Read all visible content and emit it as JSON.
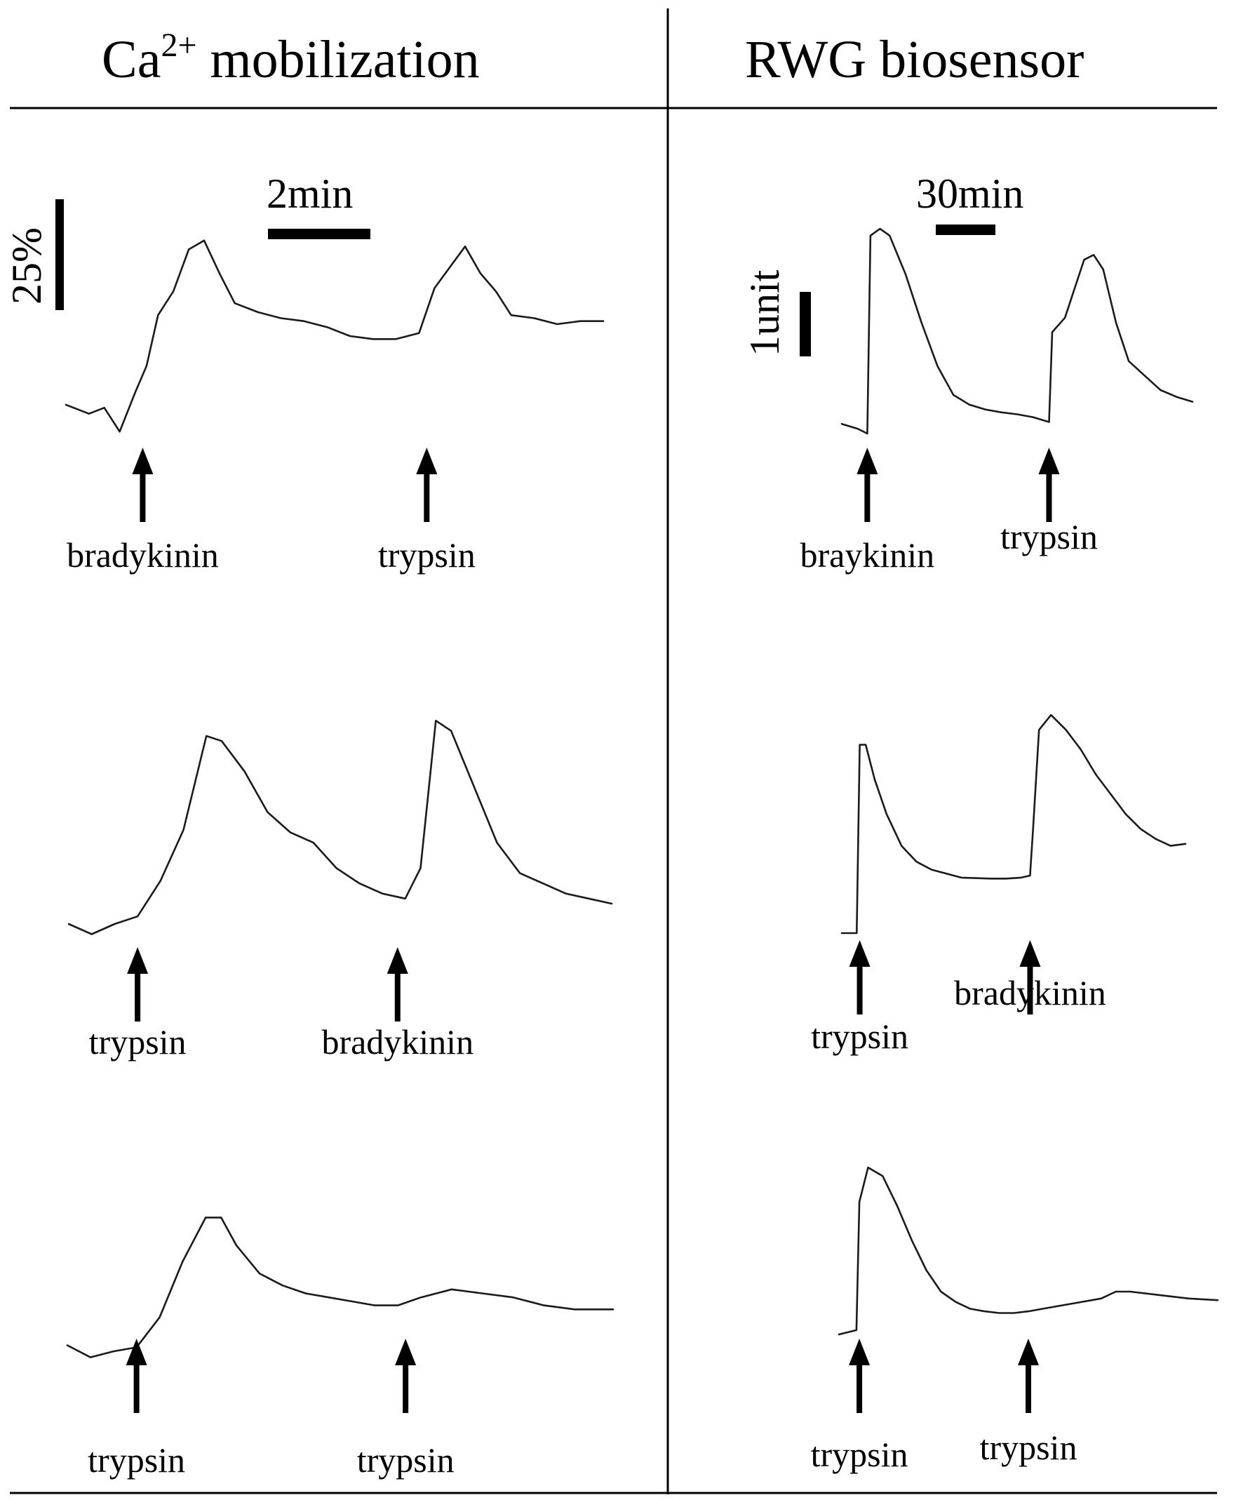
{
  "headers": {
    "left": {
      "base": "Ca",
      "sup": "2+",
      "rest": " mobilization"
    },
    "right": "RWG biosensor"
  },
  "scale_bars": {
    "ca_time": "2min",
    "ca_amplitude": "25%",
    "rwg_time": "30min",
    "rwg_amplitude": "1unit"
  },
  "colors": {
    "trace": "#1a1a1a",
    "ink": "#000000",
    "background": "#ffffff"
  },
  "chart_data": [
    {
      "type": "line",
      "panel": "Ca2+ mobilization, row 1",
      "x": [
        0,
        0.3,
        0.5,
        0.7,
        0.9,
        1.05,
        1.2,
        1.4,
        1.6,
        1.8,
        2.0,
        2.2,
        2.5,
        2.8,
        3.1,
        3.4,
        3.7,
        4.0,
        4.3,
        4.6,
        4.8,
        5.0,
        5.2,
        5.4,
        5.6,
        5.8,
        6.1,
        6.4,
        6.7,
        7.0
      ],
      "y": [
        32,
        29,
        31,
        23,
        36,
        45,
        62,
        70,
        84,
        87,
        76,
        66,
        63,
        61,
        60,
        58,
        55,
        54,
        54,
        56,
        71,
        78,
        85,
        76,
        70,
        62,
        61,
        59,
        60,
        60
      ],
      "events": [
        {
          "x": 1.0,
          "label": "bradykinin"
        },
        {
          "x": 4.7,
          "label": "trypsin"
        }
      ]
    },
    {
      "type": "line",
      "panel": "Ca2+ mobilization, row 2",
      "x": [
        0,
        0.3,
        0.6,
        0.9,
        1.2,
        1.5,
        1.8,
        2.0,
        2.3,
        2.6,
        2.9,
        3.2,
        3.5,
        3.8,
        4.1,
        4.4,
        4.6,
        4.8,
        5.0,
        5.3,
        5.6,
        5.9,
        6.2,
        6.5,
        6.8,
        7.1
      ],
      "y": [
        8,
        4,
        8,
        11,
        25,
        45,
        82,
        80,
        68,
        52,
        44,
        40,
        30,
        24,
        20,
        18,
        30,
        88,
        84,
        62,
        40,
        28,
        24,
        20,
        18,
        16
      ],
      "events": [
        {
          "x": 0.9,
          "label": "trypsin"
        },
        {
          "x": 4.3,
          "label": "bradykinin"
        }
      ]
    },
    {
      "type": "line",
      "panel": "Ca2+ mobilization, row 3",
      "x": [
        0,
        0.3,
        0.6,
        0.9,
        1.2,
        1.5,
        1.8,
        2.0,
        2.2,
        2.5,
        2.8,
        3.1,
        3.4,
        3.7,
        4.0,
        4.3,
        4.6,
        5.0,
        5.4,
        5.8,
        6.2,
        6.6,
        7.1
      ],
      "y": [
        10,
        4,
        7,
        9,
        24,
        52,
        74,
        74,
        60,
        46,
        40,
        36,
        34,
        32,
        30,
        30,
        34,
        38,
        36,
        34,
        30,
        28,
        28
      ],
      "events": [
        {
          "x": 0.9,
          "label": "trypsin"
        },
        {
          "x": 4.4,
          "label": "trypsin"
        }
      ]
    },
    {
      "type": "line",
      "panel": "RWG biosensor, row 1",
      "x": [
        0,
        5,
        8,
        9,
        12,
        15,
        20,
        25,
        30,
        35,
        40,
        45,
        50,
        55,
        60,
        65,
        66,
        70,
        73,
        76,
        79,
        82,
        86,
        90,
        95,
        100,
        105,
        110
      ],
      "y": [
        0.1,
        0.05,
        0.0,
        2.05,
        2.12,
        2.05,
        1.65,
        1.15,
        0.7,
        0.4,
        0.3,
        0.25,
        0.22,
        0.2,
        0.17,
        0.12,
        1.05,
        1.2,
        1.5,
        1.8,
        1.85,
        1.7,
        1.15,
        0.75,
        0.6,
        0.45,
        0.38,
        0.33
      ],
      "events": [
        {
          "x": 8,
          "label": "braykinin"
        },
        {
          "x": 65,
          "label": "trypsin"
        }
      ]
    },
    {
      "type": "line",
      "panel": "RWG biosensor, row 2",
      "x": [
        0,
        5,
        6,
        8,
        11,
        15,
        20,
        25,
        30,
        40,
        50,
        55,
        60,
        63,
        64,
        66,
        70,
        75,
        80,
        85,
        90,
        95,
        100,
        105,
        110,
        115
      ],
      "y": [
        0.0,
        0.0,
        1.9,
        1.9,
        1.55,
        1.2,
        0.88,
        0.72,
        0.64,
        0.56,
        0.55,
        0.55,
        0.56,
        0.58,
        1.05,
        2.05,
        2.2,
        2.05,
        1.85,
        1.6,
        1.4,
        1.2,
        1.05,
        0.95,
        0.88,
        0.9
      ],
      "events": [
        {
          "x": 6,
          "label": "trypsin"
        },
        {
          "x": 63,
          "label": "bradykinin"
        }
      ]
    },
    {
      "type": "line",
      "panel": "RWG biosensor, row 3",
      "x": [
        0,
        6,
        7,
        10,
        15,
        20,
        25,
        30,
        35,
        40,
        45,
        50,
        55,
        60,
        65,
        70,
        80,
        90,
        95,
        100,
        110,
        120,
        130
      ],
      "y": [
        0.0,
        0.05,
        1.55,
        1.95,
        1.85,
        1.5,
        1.1,
        0.75,
        0.5,
        0.38,
        0.3,
        0.27,
        0.25,
        0.25,
        0.27,
        0.3,
        0.36,
        0.42,
        0.5,
        0.5,
        0.46,
        0.42,
        0.4
      ],
      "events": [
        {
          "x": 7,
          "label": "trypsin"
        },
        {
          "x": 65,
          "label": "trypsin"
        }
      ]
    }
  ]
}
